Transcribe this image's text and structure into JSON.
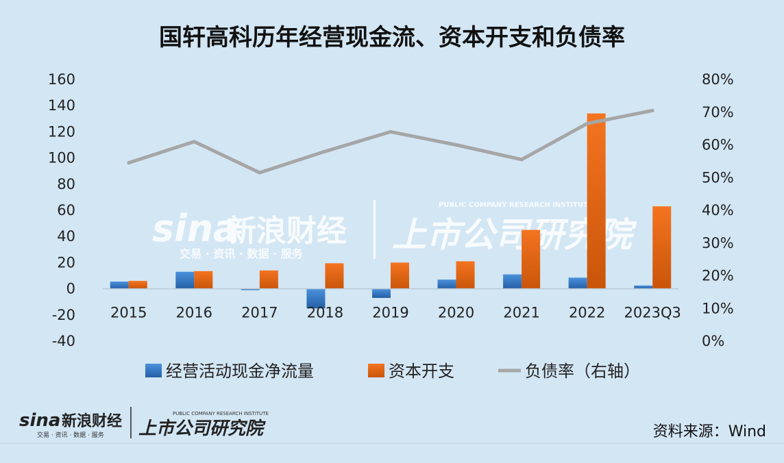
{
  "chart_data": {
    "type": "bar",
    "title": "国轩高科历年经营现金流、资本开支和负债率",
    "categories": [
      "2015",
      "2016",
      "2017",
      "2018",
      "2019",
      "2020",
      "2021",
      "2022",
      "2023Q3"
    ],
    "series": [
      {
        "name": "经营活动现金净流量",
        "kind": "bar",
        "axis": "left",
        "color": "#2e75c4",
        "values": [
          5.5,
          13,
          -1,
          -15,
          -7,
          7,
          11,
          8.5,
          2.5
        ]
      },
      {
        "name": "资本开支",
        "kind": "bar",
        "axis": "left",
        "color": "#e8620f",
        "values": [
          6,
          13.5,
          14,
          19.5,
          20,
          21,
          45,
          134,
          63
        ]
      },
      {
        "name": "负债率（右轴）",
        "kind": "line",
        "axis": "right",
        "color": "#a6a6a6",
        "values": [
          54.5,
          61,
          51.5,
          58,
          64,
          60,
          55.5,
          66.5,
          70.5
        ]
      }
    ],
    "ylim_left": [
      -40,
      160
    ],
    "yticks_left": [
      "160",
      "140",
      "120",
      "100",
      "80",
      "60",
      "40",
      "20",
      "0",
      "-20",
      "-40"
    ],
    "ylim_right": [
      0,
      80
    ],
    "yticks_right": [
      "80%",
      "70%",
      "60%",
      "50%",
      "40%",
      "30%",
      "20%",
      "10%",
      "0%"
    ],
    "grid": false,
    "legend_position": "bottom"
  },
  "watermark": {
    "brand_logo": "sina",
    "brand_name": "新浪财经",
    "brand_tagline": "交易 · 资讯 · 数据 · 服务",
    "institute_name": "上市公司研究院",
    "institute_tagline": "PUBLIC COMPANY RESEARCH INSTITUTE"
  },
  "footer": {
    "source": "资料来源：Wind"
  },
  "colors": {
    "background": "#d3e6f4",
    "bar_blue": "#2e75c4",
    "bar_orange": "#e8620f",
    "line_gray": "#a6a6a6"
  }
}
